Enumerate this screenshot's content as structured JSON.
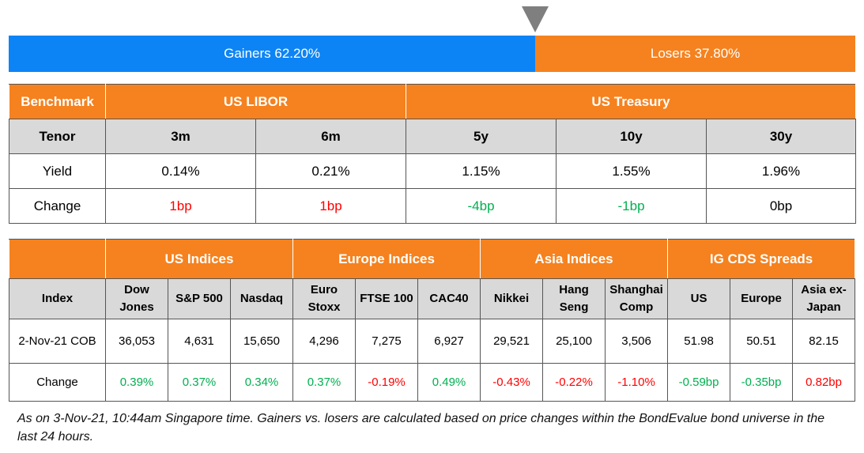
{
  "sentiment": {
    "gainers": {
      "label": "Gainers 62.20%",
      "value": 62.2,
      "color": "#0d84f5"
    },
    "losers": {
      "label": "Losers 37.80%",
      "value": 37.8,
      "color": "#f5821f"
    }
  },
  "rates_table": {
    "header": [
      "Benchmark",
      "US LIBOR",
      "US Treasury"
    ],
    "tenor_row": [
      "Tenor",
      "3m",
      "6m",
      "5y",
      "10y",
      "30y"
    ],
    "yield_row": [
      "Yield",
      "0.14%",
      "0.21%",
      "1.15%",
      "1.55%",
      "1.96%"
    ],
    "change_row": {
      "label": "Change",
      "cells": [
        {
          "text": "1bp",
          "color": "#ff0000"
        },
        {
          "text": "1bp",
          "color": "#ff0000"
        },
        {
          "text": "-4bp",
          "color": "#00b050"
        },
        {
          "text": "-1bp",
          "color": "#00b050"
        },
        {
          "text": "0bp",
          "color": "#000000"
        }
      ]
    }
  },
  "indices_table": {
    "groups": [
      "US Indices",
      "Europe Indices",
      "Asia Indices",
      "IG CDS Spreads"
    ],
    "sub_header": [
      "Index",
      "Dow Jones",
      "S&P 500",
      "Nasdaq",
      "Euro Stoxx",
      "FTSE 100",
      "CAC40",
      "Nikkei",
      "Hang Seng",
      "Shanghai Comp",
      "US",
      "Europe",
      "Asia ex-Japan"
    ],
    "level_row": [
      "2-Nov-21 COB",
      "36,053",
      "4,631",
      "15,650",
      "4,296",
      "7,275",
      "6,927",
      "29,521",
      "25,100",
      "3,506",
      "51.98",
      "50.51",
      "82.15"
    ],
    "change_row": {
      "label": "Change",
      "cells": [
        {
          "text": "0.39%",
          "color": "#00b050"
        },
        {
          "text": "0.37%",
          "color": "#00b050"
        },
        {
          "text": "0.34%",
          "color": "#00b050"
        },
        {
          "text": "0.37%",
          "color": "#00b050"
        },
        {
          "text": "-0.19%",
          "color": "#ff0000"
        },
        {
          "text": "0.49%",
          "color": "#00b050"
        },
        {
          "text": "-0.43%",
          "color": "#ff0000"
        },
        {
          "text": "-0.22%",
          "color": "#ff0000"
        },
        {
          "text": "-1.10%",
          "color": "#ff0000"
        },
        {
          "text": "-0.59bp",
          "color": "#00b050"
        },
        {
          "text": "-0.35bp",
          "color": "#00b050"
        },
        {
          "text": "0.82bp",
          "color": "#ff0000"
        }
      ]
    }
  },
  "footnote": "As on 3-Nov-21, 10:44am Singapore time. Gainers vs. losers are calculated based on price changes within the BondEvalue bond universe in the last 24 hours."
}
